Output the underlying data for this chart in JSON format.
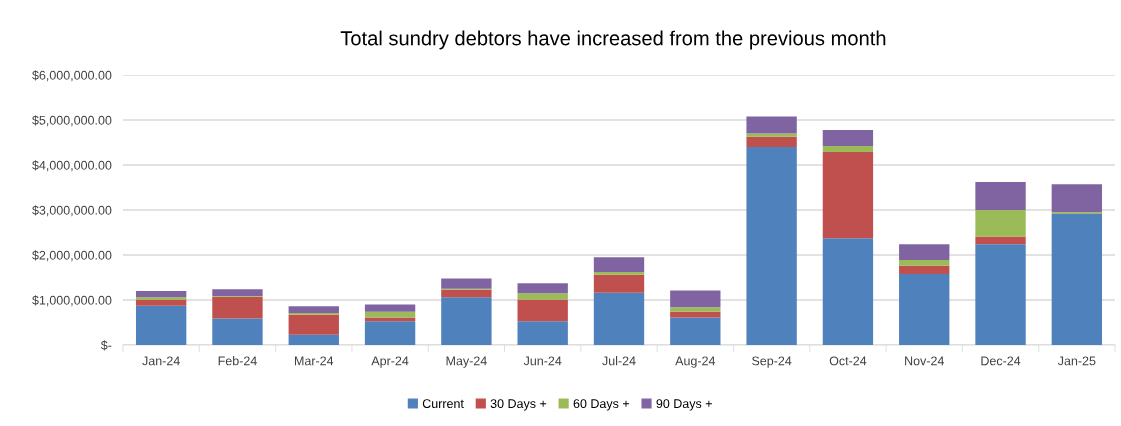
{
  "chart_data": {
    "type": "bar",
    "stacked": true,
    "title": "Total sundry debtors have increased from the previous month",
    "categories": [
      "Jan-24",
      "Feb-24",
      "Mar-24",
      "Apr-24",
      "May-24",
      "Jun-24",
      "Jul-24",
      "Aug-24",
      "Sep-24",
      "Oct-24",
      "Nov-24",
      "Dec-24",
      "Jan-25"
    ],
    "series": [
      {
        "name": "Current",
        "color": "#4f81bd",
        "values": [
          870000,
          590000,
          230000,
          530000,
          1060000,
          530000,
          1160000,
          610000,
          4400000,
          2370000,
          1580000,
          2240000,
          2910000
        ]
      },
      {
        "name": "30 Days +",
        "color": "#c0504d",
        "values": [
          130000,
          480000,
          440000,
          80000,
          170000,
          480000,
          400000,
          130000,
          230000,
          1920000,
          180000,
          170000,
          null
        ]
      },
      {
        "name": "60 Days +",
        "color": "#9bbb59",
        "values": [
          60000,
          20000,
          40000,
          130000,
          20000,
          140000,
          60000,
          100000,
          70000,
          130000,
          130000,
          590000,
          40000
        ]
      },
      {
        "name": "90 Days +",
        "color": "#8064a2",
        "values": [
          140000,
          150000,
          150000,
          160000,
          230000,
          220000,
          330000,
          370000,
          380000,
          360000,
          350000,
          620000,
          620000
        ]
      }
    ],
    "ylim": [
      0,
      6000000
    ],
    "yticks": [
      {
        "value": 0,
        "label": "$-"
      },
      {
        "value": 1000000,
        "label": "$1,000,000.00"
      },
      {
        "value": 2000000,
        "label": "$2,000,000.00"
      },
      {
        "value": 3000000,
        "label": "$3,000,000.00"
      },
      {
        "value": 4000000,
        "label": "$4,000,000.00"
      },
      {
        "value": 5000000,
        "label": "$5,000,000.00"
      },
      {
        "value": 6000000,
        "label": "$6,000,000.00"
      }
    ],
    "grid": "y",
    "legend": "bottom"
  }
}
